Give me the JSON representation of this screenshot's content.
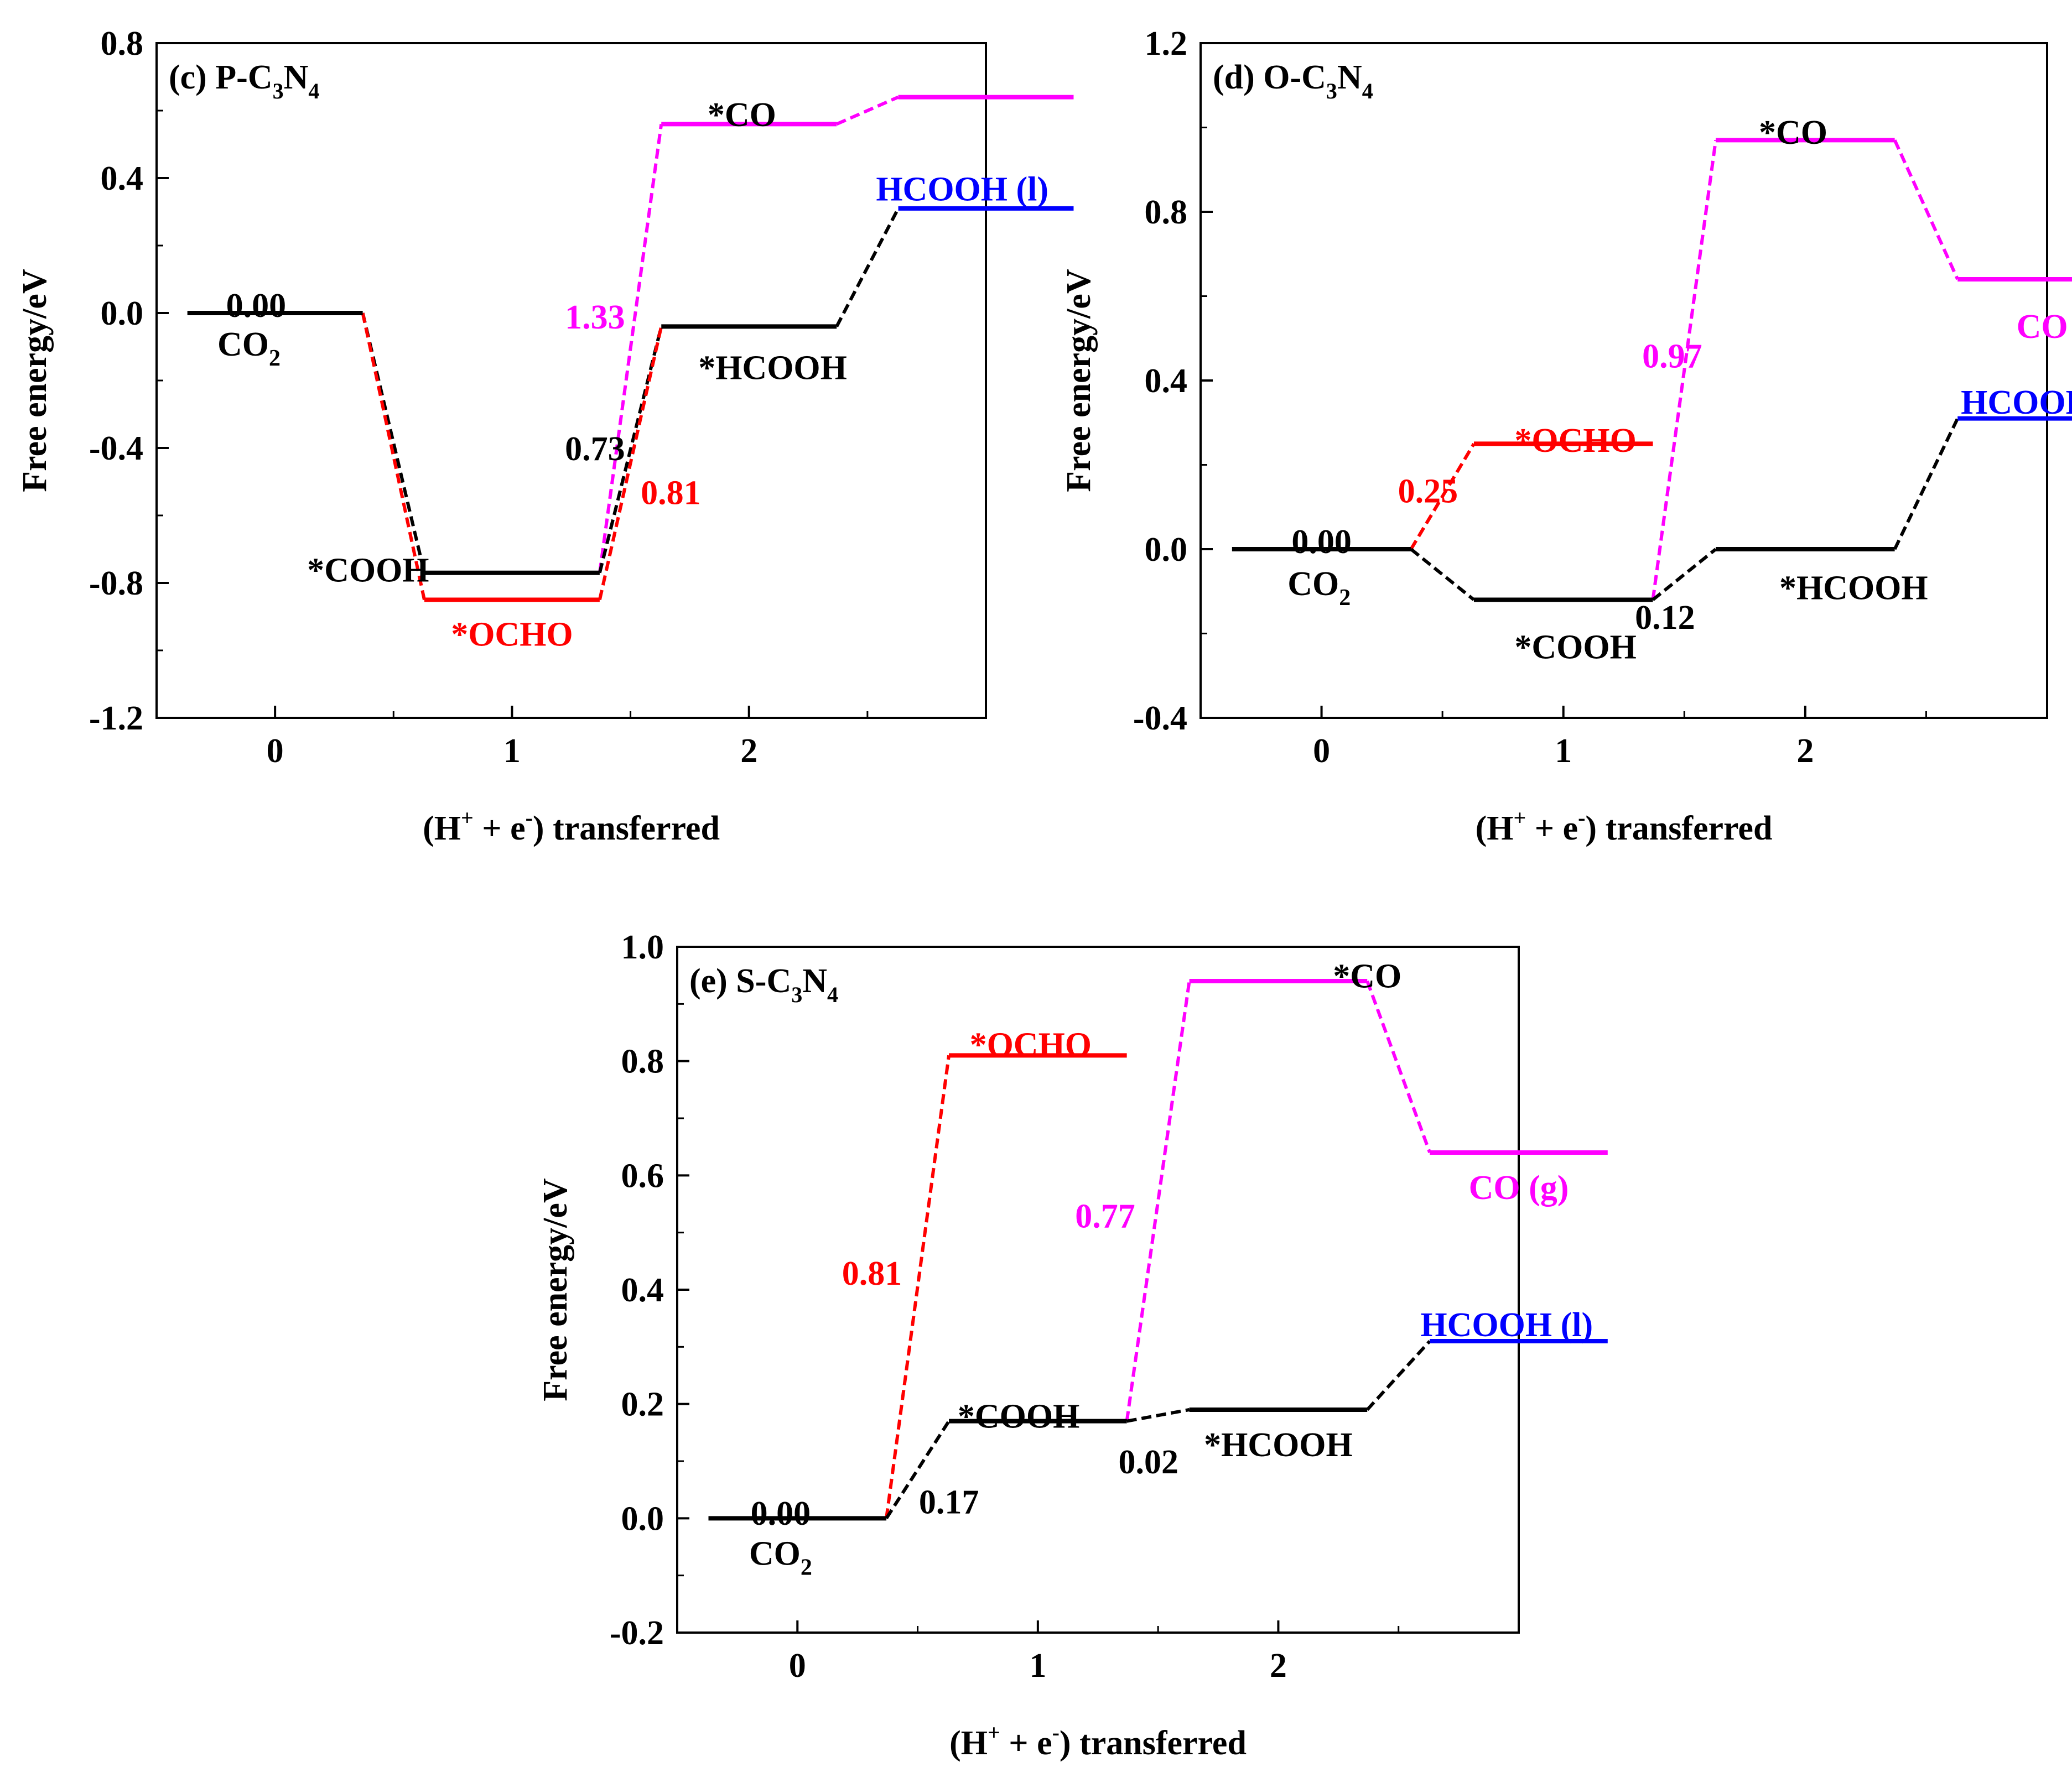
{
  "colors": {
    "black": "#000000",
    "red": "#ff0000",
    "magenta": "#ff00ff",
    "blue": "#0000ff"
  },
  "chart_data": [
    {
      "id": "c",
      "type": "line",
      "title_prefix": "(c) P-C",
      "title_sub1": "3",
      "title_mid": "N",
      "title_sub2": "4",
      "xlabel": "(H",
      "xlabel_sup1": "+",
      "xlabel_mid": " + e",
      "xlabel_sup2": "-",
      "xlabel_end": ") transferred",
      "ylabel": "Free energy/eV",
      "xlim": [
        -0.5,
        3.0
      ],
      "ylim": [
        -1.2,
        0.8
      ],
      "xticks": [
        0,
        1,
        2
      ],
      "xtick_labels": [
        "0",
        "1",
        "2"
      ],
      "yticks": [
        -1.2,
        -0.8,
        -0.4,
        0.0,
        0.4,
        0.8
      ],
      "ytick_labels": [
        "-1.2",
        "-0.8",
        "-0.4",
        "0.0",
        "0.4",
        "0.8"
      ],
      "levels": [
        {
          "x": 0,
          "y": 0.0,
          "color": "black"
        },
        {
          "x": 1,
          "y": -0.77,
          "color": "black"
        },
        {
          "x": 1,
          "y": -0.85,
          "color": "red"
        },
        {
          "x": 2,
          "y": -0.04,
          "color": "black"
        },
        {
          "x": 2,
          "y": 0.56,
          "color": "magenta"
        },
        {
          "x": 3,
          "y": 0.31,
          "color": "blue"
        },
        {
          "x": 3,
          "y": 0.64,
          "color": "magenta"
        }
      ],
      "paths": [
        {
          "from": [
            0,
            0.0
          ],
          "to": [
            1,
            -0.77
          ],
          "color": "black"
        },
        {
          "from": [
            0,
            0.0
          ],
          "to": [
            1,
            -0.85
          ],
          "color": "red"
        },
        {
          "from": [
            1,
            -0.77
          ],
          "to": [
            2,
            0.56
          ],
          "color": "magenta"
        },
        {
          "from": [
            1,
            -0.77
          ],
          "to": [
            2,
            -0.04
          ],
          "color": "black"
        },
        {
          "from": [
            1,
            -0.85
          ],
          "to": [
            2,
            -0.04
          ],
          "color": "red"
        },
        {
          "from": [
            2,
            -0.04
          ],
          "to": [
            3,
            0.31
          ],
          "color": "black"
        },
        {
          "from": [
            2,
            0.56
          ],
          "to": [
            3,
            0.64
          ],
          "color": "magenta"
        }
      ],
      "labels": [
        {
          "text": "0.00",
          "x": -0.08,
          "y": 0.025,
          "color": "black",
          "anchor": "middle"
        },
        {
          "text": "CO",
          "sub": "2",
          "x": -0.11,
          "y": -0.09,
          "color": "black",
          "anchor": "middle"
        },
        {
          "text": "*COOH",
          "x": 0.65,
          "y": -0.76,
          "color": "black",
          "anchor": "end"
        },
        {
          "text": "*OCHO",
          "x": 1.0,
          "y": -0.95,
          "color": "red",
          "anchor": "middle"
        },
        {
          "text": "1.33",
          "x": 1.35,
          "y": -0.01,
          "color": "magenta",
          "anchor": "middle"
        },
        {
          "text": "0.73",
          "x": 1.35,
          "y": -0.4,
          "color": "black",
          "anchor": "middle"
        },
        {
          "text": "0.81",
          "x": 1.67,
          "y": -0.53,
          "color": "red",
          "anchor": "middle"
        },
        {
          "text": "*CO",
          "x": 1.97,
          "y": 0.59,
          "color": "black",
          "anchor": "middle"
        },
        {
          "text": "*HCOOH",
          "x": 2.1,
          "y": -0.16,
          "color": "black",
          "anchor": "middle"
        },
        {
          "text": "HCOOH (l)",
          "x": 2.9,
          "y": 0.37,
          "color": "blue",
          "anchor": "middle"
        }
      ]
    },
    {
      "id": "d",
      "type": "line",
      "title_prefix": "(d) O-C",
      "title_sub1": "3",
      "title_mid": "N",
      "title_sub2": "4",
      "xlabel": "(H",
      "xlabel_sup1": "+",
      "xlabel_mid": " + e",
      "xlabel_sup2": "-",
      "xlabel_end": ") transferred",
      "ylabel": "Free energy/eV",
      "xlim": [
        -0.5,
        3.0
      ],
      "ylim": [
        -0.4,
        1.2
      ],
      "xticks": [
        0,
        1,
        2
      ],
      "xtick_labels": [
        "0",
        "1",
        "2"
      ],
      "yticks": [
        -0.4,
        0.0,
        0.4,
        0.8,
        1.2
      ],
      "ytick_labels": [
        "-0.4",
        "0.0",
        "0.4",
        "0.8",
        "1.2"
      ],
      "levels": [
        {
          "x": 0,
          "y": 0.0,
          "color": "black"
        },
        {
          "x": 1,
          "y": -0.12,
          "color": "black"
        },
        {
          "x": 1,
          "y": 0.25,
          "color": "red"
        },
        {
          "x": 2,
          "y": 0.0,
          "color": "black"
        },
        {
          "x": 2,
          "y": 0.97,
          "color": "magenta"
        },
        {
          "x": 3,
          "y": 0.31,
          "color": "blue"
        },
        {
          "x": 3,
          "y": 0.64,
          "color": "magenta"
        }
      ],
      "paths": [
        {
          "from": [
            0,
            0.0
          ],
          "to": [
            1,
            0.25
          ],
          "color": "red"
        },
        {
          "from": [
            0,
            0.0
          ],
          "to": [
            1,
            -0.12
          ],
          "color": "black"
        },
        {
          "from": [
            1,
            -0.12
          ],
          "to": [
            2,
            0.97
          ],
          "color": "magenta"
        },
        {
          "from": [
            1,
            -0.12
          ],
          "to": [
            2,
            0.0
          ],
          "color": "black"
        },
        {
          "from": [
            2,
            0.97
          ],
          "to": [
            3,
            0.64
          ],
          "color": "magenta"
        },
        {
          "from": [
            2,
            0.0
          ],
          "to": [
            3,
            0.31
          ],
          "color": "black"
        }
      ],
      "labels": [
        {
          "text": "0.00",
          "x": 0.0,
          "y": 0.02,
          "color": "black",
          "anchor": "middle"
        },
        {
          "text": "CO",
          "sub": "2",
          "x": -0.01,
          "y": -0.08,
          "color": "black",
          "anchor": "middle"
        },
        {
          "text": "0.25",
          "x": 0.44,
          "y": 0.14,
          "color": "red",
          "anchor": "middle"
        },
        {
          "text": "*OCHO",
          "x": 1.05,
          "y": 0.26,
          "color": "red",
          "anchor": "middle"
        },
        {
          "text": "*COOH",
          "x": 1.05,
          "y": -0.23,
          "color": "black",
          "anchor": "middle"
        },
        {
          "text": "0.12",
          "x": 1.42,
          "y": -0.16,
          "color": "black",
          "anchor": "middle"
        },
        {
          "text": "0.97",
          "x": 1.45,
          "y": 0.46,
          "color": "magenta",
          "anchor": "middle"
        },
        {
          "text": "*CO",
          "x": 1.95,
          "y": 0.99,
          "color": "black",
          "anchor": "middle"
        },
        {
          "text": "*HCOOH",
          "x": 2.2,
          "y": -0.09,
          "color": "black",
          "anchor": "middle"
        },
        {
          "text": "CO (g)",
          "x": 3.08,
          "y": 0.53,
          "color": "magenta",
          "anchor": "middle"
        },
        {
          "text": "HCOOH (l)",
          "x": 3.0,
          "y": 0.35,
          "color": "blue",
          "anchor": "middle"
        }
      ]
    },
    {
      "id": "e",
      "type": "line",
      "title_prefix": "(e) S-C",
      "title_sub1": "3",
      "title_mid": "N",
      "title_sub2": "4",
      "xlabel": "(H",
      "xlabel_sup1": "+",
      "xlabel_mid": " + e",
      "xlabel_sup2": "-",
      "xlabel_end": ") transferred",
      "ylabel": "Free energy/eV",
      "xlim": [
        -0.5,
        3.0
      ],
      "ylim": [
        -0.2,
        1.0
      ],
      "xticks": [
        0,
        1,
        2
      ],
      "xtick_labels": [
        "0",
        "1",
        "2"
      ],
      "yticks": [
        -0.2,
        0.0,
        0.2,
        0.4,
        0.6,
        0.8,
        1.0
      ],
      "ytick_labels": [
        "-0.2",
        "0.0",
        "0.2",
        "0.4",
        "0.6",
        "0.8",
        "1.0"
      ],
      "levels": [
        {
          "x": 0,
          "y": 0.0,
          "color": "black"
        },
        {
          "x": 1,
          "y": 0.17,
          "color": "black"
        },
        {
          "x": 1,
          "y": 0.81,
          "color": "red"
        },
        {
          "x": 2,
          "y": 0.19,
          "color": "black"
        },
        {
          "x": 2,
          "y": 0.94,
          "color": "magenta"
        },
        {
          "x": 3,
          "y": 0.31,
          "color": "blue"
        },
        {
          "x": 3,
          "y": 0.64,
          "color": "magenta"
        }
      ],
      "paths": [
        {
          "from": [
            0,
            0.0
          ],
          "to": [
            1,
            0.81
          ],
          "color": "red"
        },
        {
          "from": [
            0,
            0.0
          ],
          "to": [
            1,
            0.17
          ],
          "color": "black"
        },
        {
          "from": [
            1,
            0.17
          ],
          "to": [
            2,
            0.94
          ],
          "color": "magenta"
        },
        {
          "from": [
            1,
            0.17
          ],
          "to": [
            2,
            0.19
          ],
          "color": "black"
        },
        {
          "from": [
            2,
            0.94
          ],
          "to": [
            3,
            0.64
          ],
          "color": "magenta"
        },
        {
          "from": [
            2,
            0.19
          ],
          "to": [
            3,
            0.31
          ],
          "color": "black"
        }
      ],
      "labels": [
        {
          "text": "0.00",
          "x": -0.07,
          "y": 0.01,
          "color": "black",
          "anchor": "middle"
        },
        {
          "text": "CO",
          "sub": "2",
          "x": -0.07,
          "y": -0.06,
          "color": "black",
          "anchor": "middle"
        },
        {
          "text": "0.81",
          "x": 0.31,
          "y": 0.43,
          "color": "red",
          "anchor": "middle"
        },
        {
          "text": "*OCHO",
          "x": 0.97,
          "y": 0.83,
          "color": "red",
          "anchor": "middle"
        },
        {
          "text": "*COOH",
          "x": 0.92,
          "y": 0.18,
          "color": "black",
          "anchor": "middle"
        },
        {
          "text": "0.17",
          "x": 0.63,
          "y": 0.03,
          "color": "black",
          "anchor": "middle"
        },
        {
          "text": "0.02",
          "x": 1.46,
          "y": 0.1,
          "color": "black",
          "anchor": "middle"
        },
        {
          "text": "0.77",
          "x": 1.28,
          "y": 0.53,
          "color": "magenta",
          "anchor": "middle"
        },
        {
          "text": "*CO",
          "x": 2.37,
          "y": 0.95,
          "color": "black",
          "anchor": "middle"
        },
        {
          "text": "*HCOOH",
          "x": 2.0,
          "y": 0.13,
          "color": "black",
          "anchor": "middle"
        },
        {
          "text": "CO (g)",
          "x": 3.0,
          "y": 0.58,
          "color": "magenta",
          "anchor": "middle"
        },
        {
          "text": "HCOOH (l)",
          "x": 2.95,
          "y": 0.34,
          "color": "blue",
          "anchor": "middle"
        }
      ]
    }
  ]
}
